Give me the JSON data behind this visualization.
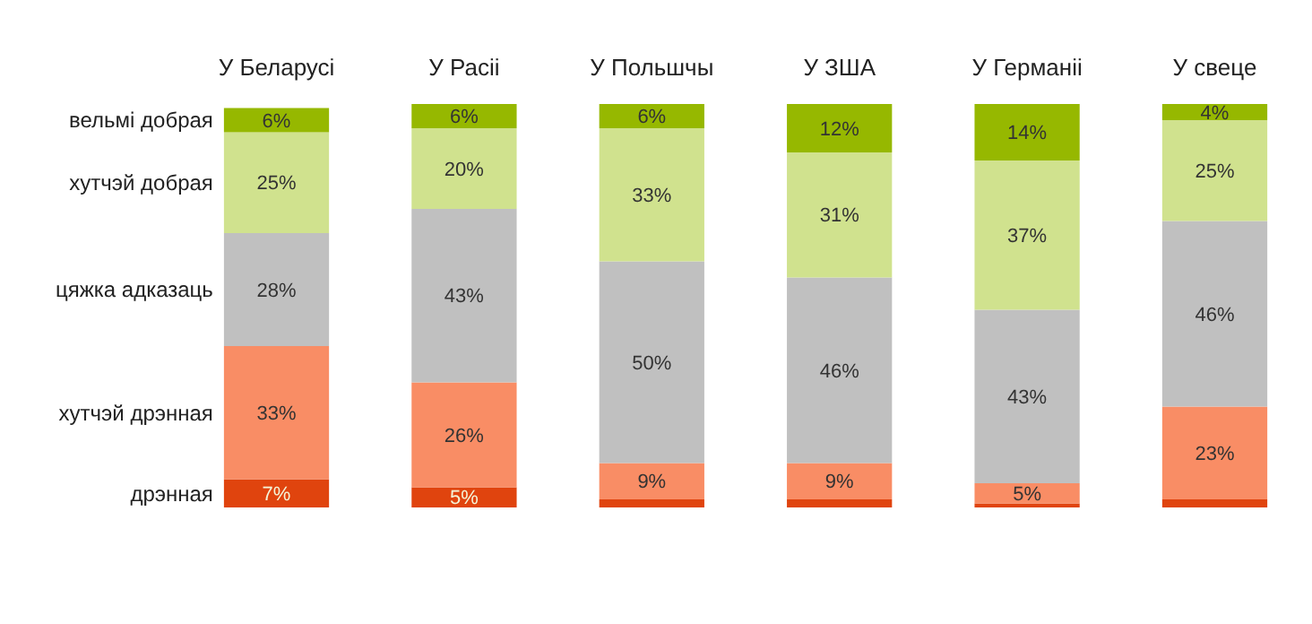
{
  "chart_data": {
    "type": "bar",
    "stacked": true,
    "legend": "left",
    "categories": [
      "У Беларусі",
      "У Расіі",
      "У Польшчы",
      "У ЗША",
      "У Германіі",
      "У свеце"
    ],
    "series": [
      {
        "name": "дрэнная",
        "color": "#e0440e",
        "values": [
          7,
          5,
          2,
          2,
          1,
          2
        ],
        "value_labels": [
          "7%",
          "5%",
          null,
          null,
          null,
          null
        ]
      },
      {
        "name": "хутчэй дрэнная",
        "color": "#f98d65",
        "values": [
          33,
          26,
          9,
          9,
          5,
          23
        ],
        "value_labels": [
          "33%",
          "26%",
          "9%",
          "9%",
          "5%",
          "23%"
        ]
      },
      {
        "name": "цяжка адказаць",
        "color": "#c0c0c0",
        "values": [
          28,
          43,
          50,
          46,
          43,
          46
        ],
        "value_labels": [
          "28%",
          "43%",
          "50%",
          "46%",
          "43%",
          "46%"
        ]
      },
      {
        "name": "хутчэй добрая",
        "color": "#d0e28e",
        "values": [
          25,
          20,
          33,
          31,
          37,
          25
        ],
        "value_labels": [
          "25%",
          "20%",
          "33%",
          "31%",
          "37%",
          "25%"
        ]
      },
      {
        "name": "вельмі добрая",
        "color": "#96b800",
        "values": [
          6,
          6,
          6,
          12,
          14,
          4
        ],
        "value_labels": [
          "6%",
          "6%",
          "6%",
          "12%",
          "14%",
          "4%"
        ]
      }
    ]
  }
}
